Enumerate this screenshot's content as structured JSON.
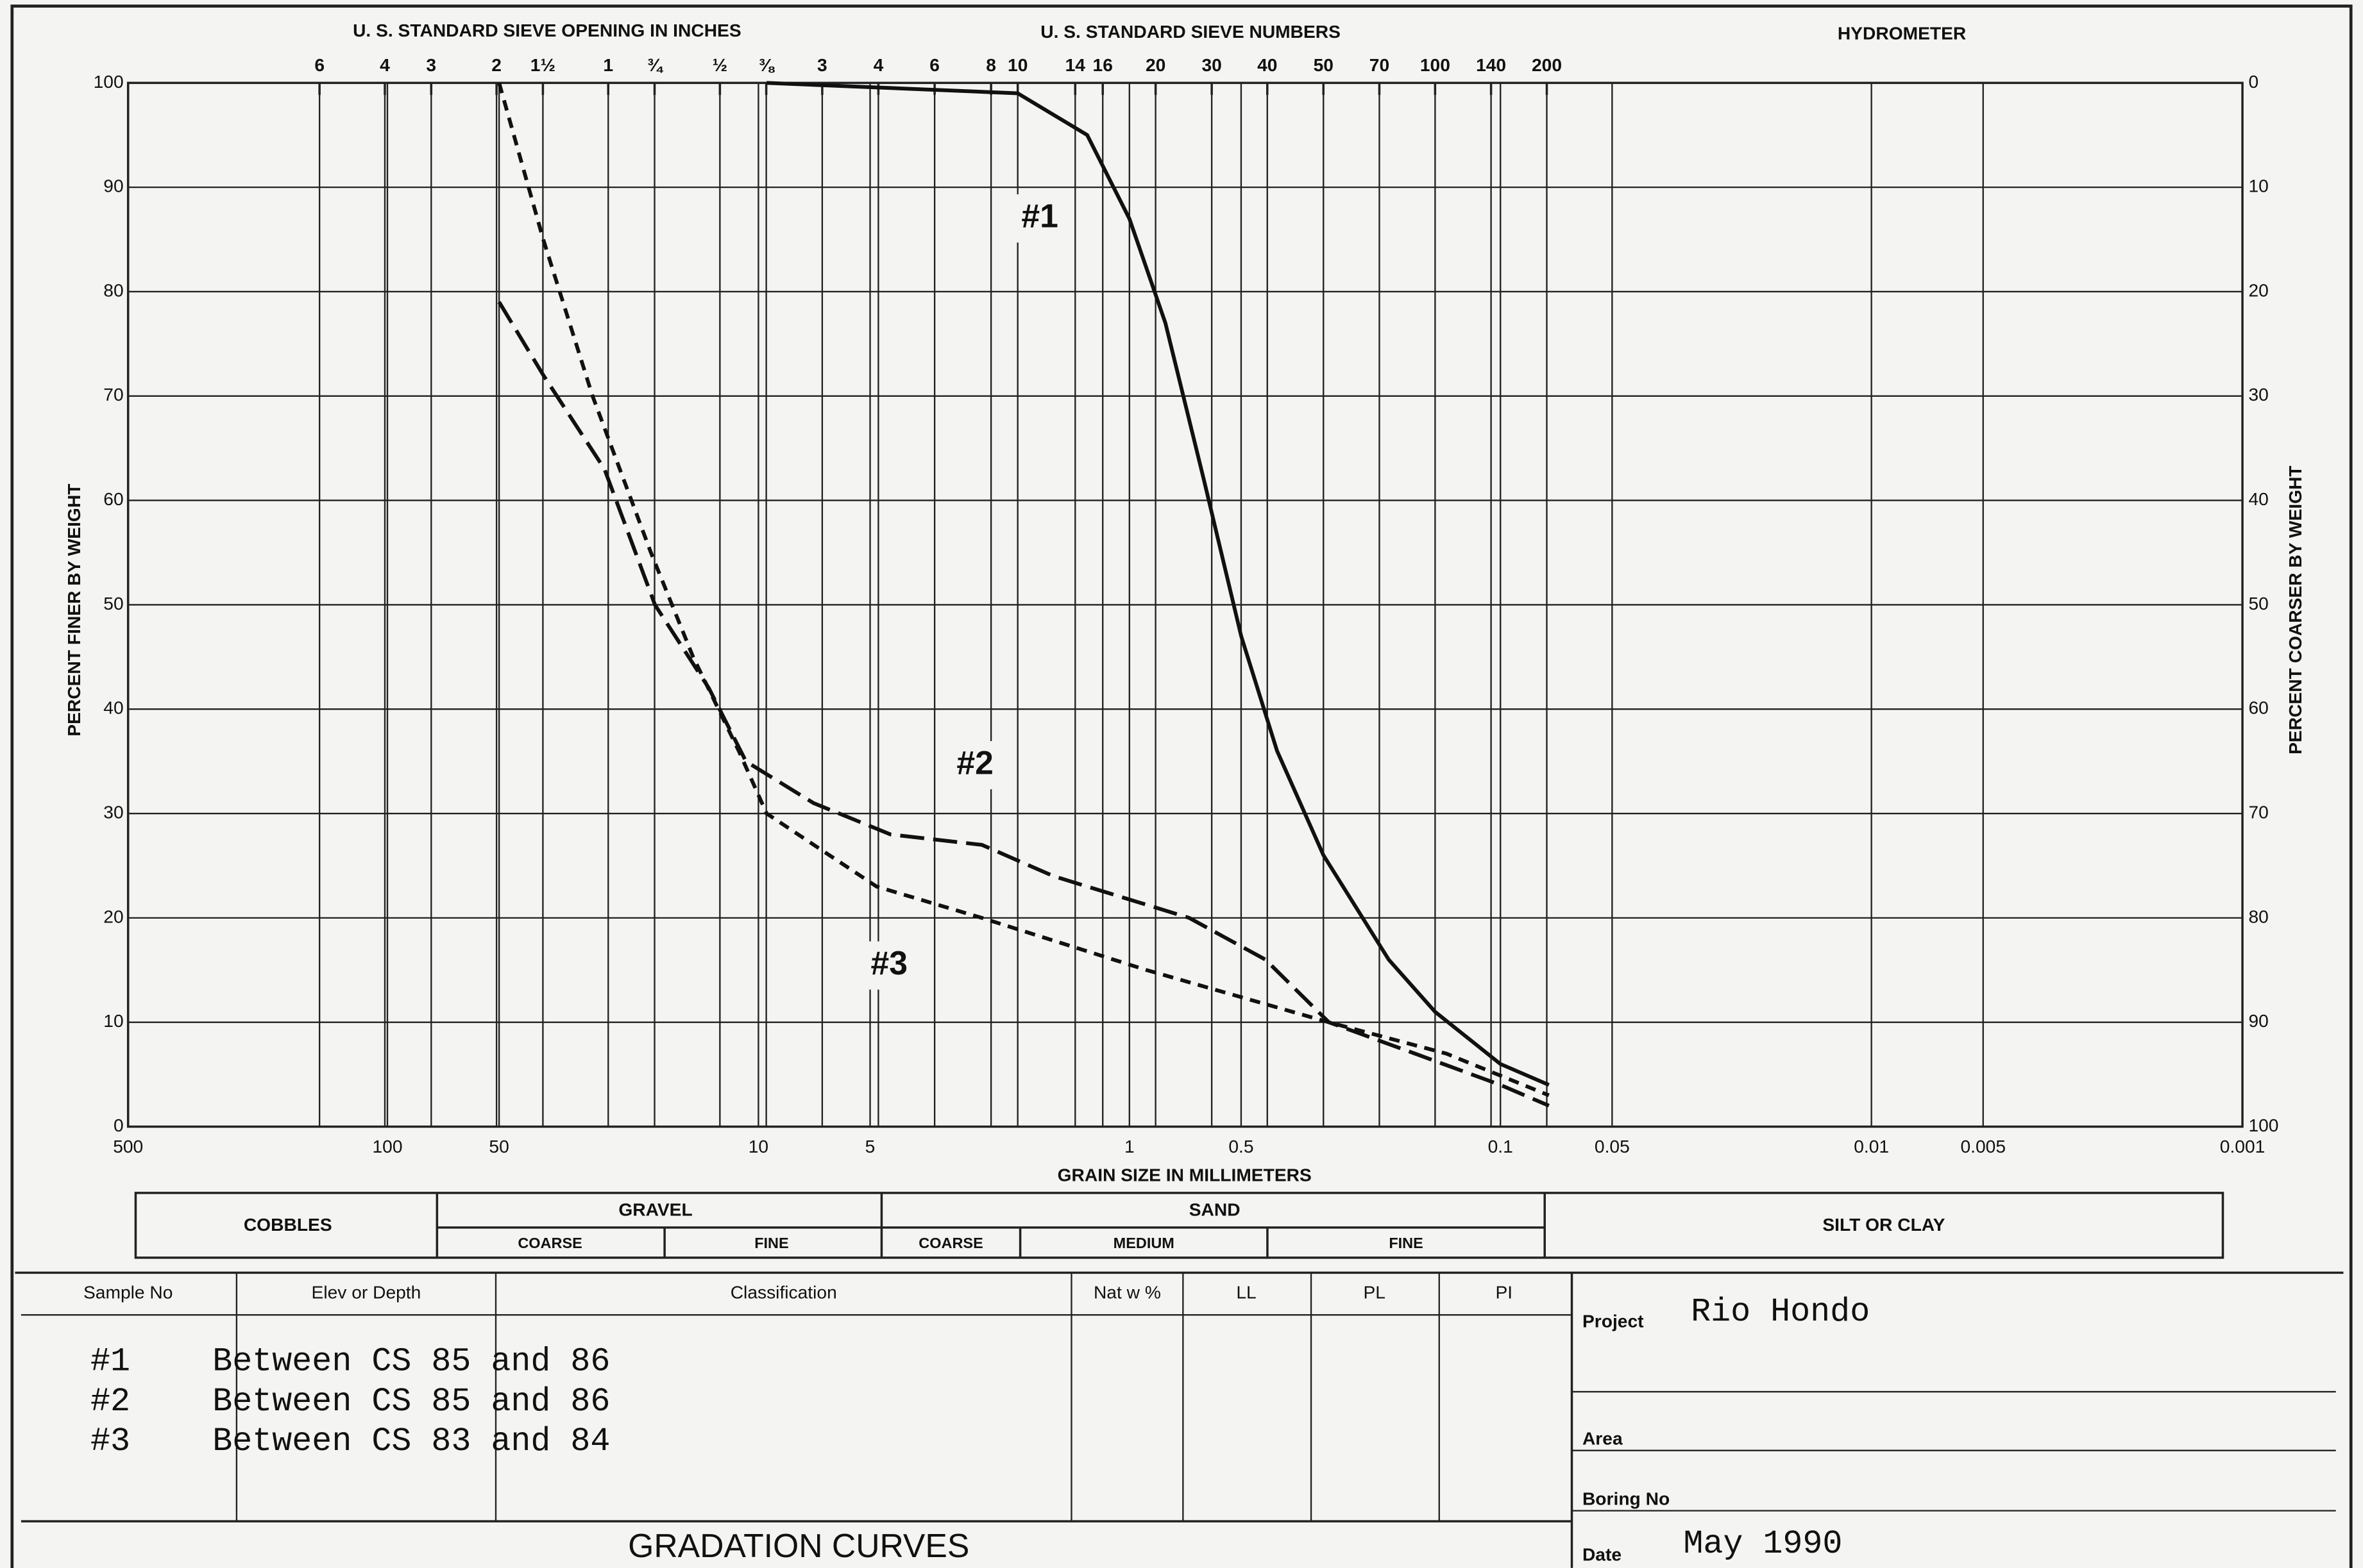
{
  "chart_data": {
    "type": "line",
    "top_left_label": "U. S. STANDARD SIEVE OPENING IN INCHES",
    "top_mid_label": "U. S. STANDARD SIEVE NUMBERS",
    "top_right_label": "HYDROMETER",
    "xlabel": "GRAIN SIZE IN MILLIMETERS",
    "ylabel": "PERCENT FINER BY WEIGHT",
    "y2label": "PERCENT COARSER BY WEIGHT",
    "xscale": "log",
    "xlim": [
      500,
      0.001
    ],
    "xticks": [
      500,
      100,
      50,
      10,
      5,
      1,
      0.5,
      0.1,
      0.05,
      0.01,
      0.005,
      0.001
    ],
    "inch_ticks": [
      {
        "value": 152.4,
        "label": "6"
      },
      {
        "value": 101.6,
        "label": "4"
      },
      {
        "value": 76.2,
        "label": "3"
      },
      {
        "value": 50.8,
        "label": "2"
      },
      {
        "value": 38.1,
        "label": "1½"
      },
      {
        "value": 25.4,
        "label": "1"
      },
      {
        "value": 19.05,
        "label": "¾"
      },
      {
        "value": 12.7,
        "label": "½"
      },
      {
        "value": 9.525,
        "label": "⅜"
      }
    ],
    "sieve_ticks": [
      {
        "value": 6.73,
        "label": "3"
      },
      {
        "value": 4.75,
        "label": "4"
      },
      {
        "value": 3.35,
        "label": "6"
      },
      {
        "value": 2.36,
        "label": "8"
      },
      {
        "value": 2.0,
        "label": "10"
      },
      {
        "value": 1.4,
        "label": "14"
      },
      {
        "value": 1.18,
        "label": "16"
      },
      {
        "value": 0.85,
        "label": "20"
      },
      {
        "value": 0.6,
        "label": "30"
      },
      {
        "value": 0.425,
        "label": "40"
      },
      {
        "value": 0.3,
        "label": "50"
      },
      {
        "value": 0.212,
        "label": "70"
      },
      {
        "value": 0.15,
        "label": "100"
      },
      {
        "value": 0.106,
        "label": "140"
      },
      {
        "value": 0.075,
        "label": "200"
      }
    ],
    "ylim": [
      0,
      100
    ],
    "yticks": [
      0,
      10,
      20,
      30,
      40,
      50,
      60,
      70,
      80,
      90,
      100
    ],
    "y2lim": [
      100,
      0
    ],
    "y2ticks": [
      0,
      10,
      20,
      30,
      40,
      50,
      60,
      70,
      80,
      90,
      100
    ],
    "grid": true,
    "series": [
      {
        "name": "#1",
        "color": "#111111",
        "dash": "solid",
        "x": [
          9.5,
          2.0,
          1.3,
          1.0,
          0.8,
          0.63,
          0.5,
          0.4,
          0.3,
          0.2,
          0.15,
          0.1,
          0.074
        ],
        "values": [
          100,
          99,
          95,
          87,
          77,
          62,
          47,
          36,
          26,
          16,
          11,
          6,
          4
        ]
      },
      {
        "name": "#2",
        "color": "#111111",
        "dash": "long-dash",
        "x": [
          50,
          38,
          26,
          19,
          13.6,
          10.8,
          7.1,
          4.4,
          2.5,
          1.6,
          0.69,
          0.43,
          0.29,
          0.17,
          0.1,
          0.074
        ],
        "values": [
          79,
          72,
          63,
          50,
          42,
          35,
          31,
          28,
          27,
          24,
          20,
          16,
          10,
          7,
          4,
          2
        ]
      },
      {
        "name": "#3",
        "color": "#111111",
        "dash": "short-dash",
        "x": [
          50,
          38,
          28,
          19.5,
          15,
          11.3,
          9.5,
          4.8,
          2.5,
          0.9,
          0.29,
          0.14,
          0.074
        ],
        "values": [
          100,
          85,
          70,
          55,
          45,
          36,
          30,
          23,
          20,
          15,
          10,
          7,
          3
        ]
      }
    ]
  },
  "soil_classes": {
    "cobbles": "COBBLES",
    "gravel": "GRAVEL",
    "gravel_coarse": "COARSE",
    "gravel_fine": "FINE",
    "sand": "SAND",
    "sand_coarse": "COARSE",
    "sand_medium": "MEDIUM",
    "sand_fine": "FINE",
    "silt": "SILT OR CLAY"
  },
  "table": {
    "headers": [
      "Sample No",
      "Elev or Depth",
      "Classification",
      "Nat w %",
      "LL",
      "PL",
      "PI"
    ],
    "rows": [
      [
        "#1",
        "Between CS 85 and 86"
      ],
      [
        "#2",
        "Between CS 85 and 86"
      ],
      [
        "#3",
        "Between CS 83 and 84"
      ]
    ]
  },
  "info": {
    "project_label": "Project",
    "project": "Rio Hondo",
    "area_label": "Area",
    "boring_label": "Boring No",
    "date_label": "Date",
    "date": "May 1990"
  },
  "footer": "GRADATION CURVES"
}
